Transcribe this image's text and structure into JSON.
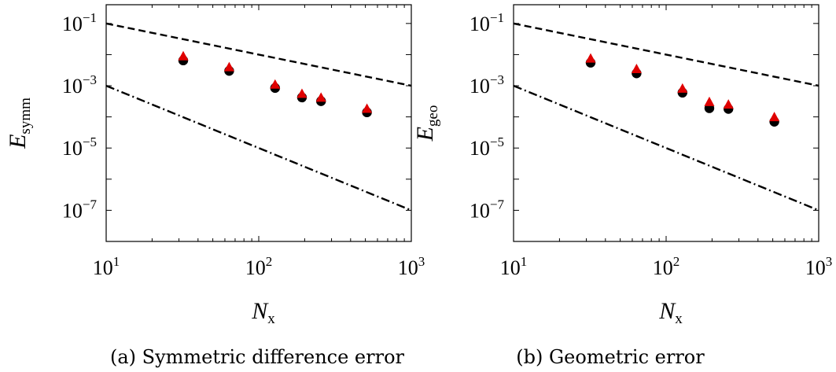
{
  "chart_data": [
    {
      "type": "scatter",
      "caption": "(a) Symmetric difference error",
      "xlabel": "N",
      "xlabel_sub": "x",
      "ylabel": "E",
      "ylabel_sub": "symm",
      "x_scale": "log",
      "y_scale": "log",
      "xlim": [
        10,
        1000
      ],
      "ylim": [
        1e-08,
        0.4
      ],
      "xticks": [
        {
          "base": "10",
          "exp": "1",
          "value": 10
        },
        {
          "base": "10",
          "exp": "2",
          "value": 100
        },
        {
          "base": "10",
          "exp": "3",
          "value": 1000
        }
      ],
      "yticks": [
        {
          "base": "10",
          "exp": "−1",
          "value": 0.1
        },
        {
          "base": "10",
          "exp": "−3",
          "value": 0.001
        },
        {
          "base": "10",
          "exp": "−5",
          "value": 1e-05
        },
        {
          "base": "10",
          "exp": "−7",
          "value": 1e-07
        }
      ],
      "grid": false,
      "series": [
        {
          "marker": "circle",
          "color": "#000000",
          "x": [
            32,
            64,
            128,
            192,
            256,
            512
          ],
          "y": [
            0.0065,
            0.003,
            0.00085,
            0.00042,
            0.00032,
            0.00014
          ]
        },
        {
          "marker": "triangle",
          "color": "#e00000",
          "x": [
            32,
            64,
            128,
            192,
            256,
            512
          ],
          "y": [
            0.0085,
            0.0038,
            0.00105,
            0.00053,
            0.0004,
            0.000175
          ]
        }
      ],
      "reference_lines": [
        {
          "style": "dashed",
          "x": [
            10,
            1000
          ],
          "y": [
            0.1,
            0.001
          ]
        },
        {
          "style": "dashdot",
          "x": [
            10,
            1000
          ],
          "y": [
            0.001,
            1e-07
          ]
        }
      ]
    },
    {
      "type": "scatter",
      "caption": "(b) Geometric error",
      "xlabel": "N",
      "xlabel_sub": "x",
      "ylabel": "E",
      "ylabel_sub": "geo",
      "x_scale": "log",
      "y_scale": "log",
      "xlim": [
        10,
        1000
      ],
      "ylim": [
        1e-08,
        0.4
      ],
      "xticks": [
        {
          "base": "10",
          "exp": "1",
          "value": 10
        },
        {
          "base": "10",
          "exp": "2",
          "value": 100
        },
        {
          "base": "10",
          "exp": "3",
          "value": 1000
        }
      ],
      "yticks": [
        {
          "base": "10",
          "exp": "−1",
          "value": 0.1
        },
        {
          "base": "10",
          "exp": "−3",
          "value": 0.001
        },
        {
          "base": "10",
          "exp": "−5",
          "value": 1e-05
        },
        {
          "base": "10",
          "exp": "−7",
          "value": 1e-07
        }
      ],
      "grid": false,
      "series": [
        {
          "marker": "circle",
          "color": "#000000",
          "x": [
            32,
            64,
            128,
            192,
            256,
            512
          ],
          "y": [
            0.0055,
            0.0025,
            0.0006,
            0.00019,
            0.00018,
            7e-05
          ]
        },
        {
          "marker": "triangle",
          "color": "#e00000",
          "x": [
            32,
            64,
            128,
            192,
            256,
            512
          ],
          "y": [
            0.0072,
            0.0033,
            0.00078,
            0.00029,
            0.00024,
            9.5e-05
          ]
        }
      ],
      "reference_lines": [
        {
          "style": "dashed",
          "x": [
            10,
            1000
          ],
          "y": [
            0.1,
            0.001
          ]
        },
        {
          "style": "dashdot",
          "x": [
            10,
            1000
          ],
          "y": [
            0.001,
            1e-07
          ]
        }
      ]
    }
  ]
}
